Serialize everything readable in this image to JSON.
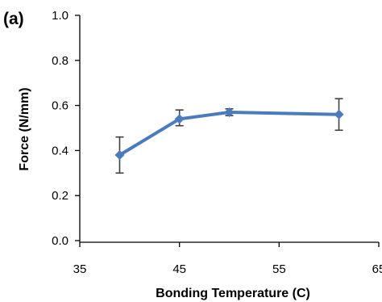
{
  "panel_label": "(a)",
  "colors": {
    "series": "#4a7bbf",
    "errorbar": "#404040",
    "axis": "#000000"
  },
  "chart_data": {
    "type": "line",
    "xlabel": "Bonding Temperature (C)",
    "ylabel": "Force (N/mm)",
    "xlim": [
      35,
      65
    ],
    "ylim": [
      0,
      1.0
    ],
    "x_ticks": [
      35,
      45,
      55,
      65
    ],
    "x_tick_labels": [
      "35",
      "45",
      "55",
      "65"
    ],
    "y_ticks": [
      0.0,
      0.2,
      0.4,
      0.6,
      0.8,
      1.0
    ],
    "y_tick_labels": [
      "0.0",
      "0.2",
      "0.4",
      "0.6",
      "0.8",
      "1.0"
    ],
    "grid": false,
    "legend": "none",
    "marker": "diamond",
    "series": [
      {
        "x": [
          39,
          45,
          50,
          61
        ],
        "y": [
          0.38,
          0.54,
          0.57,
          0.56
        ],
        "error_low": [
          0.3,
          0.51,
          0.555,
          0.49
        ],
        "error_high": [
          0.46,
          0.58,
          0.585,
          0.63
        ]
      }
    ]
  }
}
